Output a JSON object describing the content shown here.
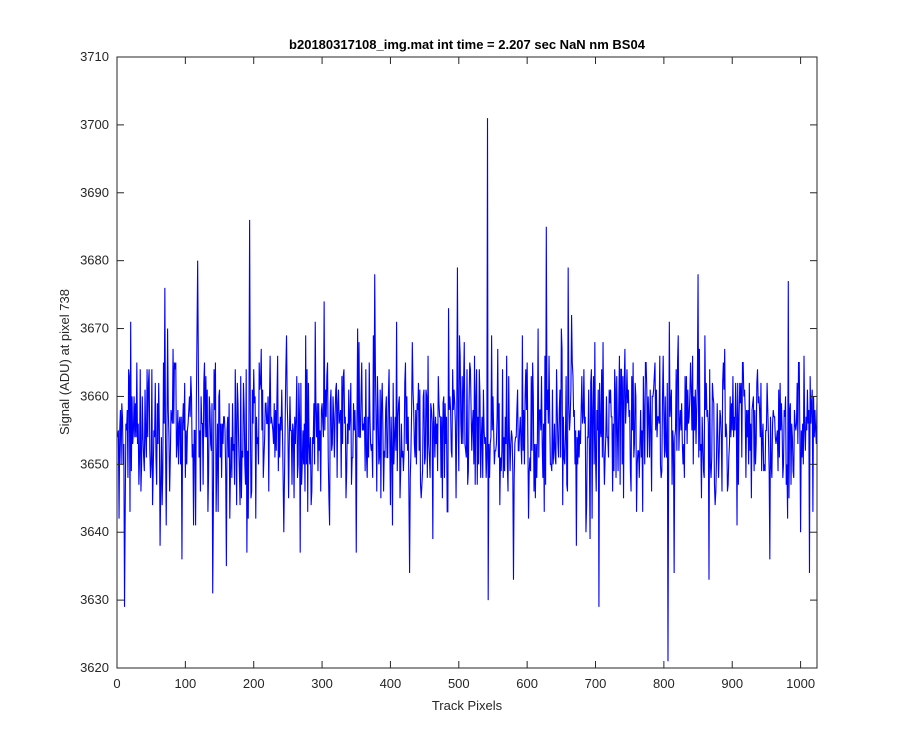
{
  "chart_data": {
    "type": "line",
    "title": "b20180317108_img.mat int time = 2.207 sec  NaN nm BS04",
    "xlabel": "Track Pixels",
    "ylabel": "Signal (ADU) at pixel 738",
    "xlim": [
      0,
      1024
    ],
    "ylim": [
      3620,
      3710
    ],
    "xticks": [
      0,
      100,
      200,
      300,
      400,
      500,
      600,
      700,
      800,
      900,
      1000
    ],
    "yticks": [
      3620,
      3630,
      3640,
      3650,
      3660,
      3670,
      3680,
      3690,
      3700,
      3710
    ],
    "grid": false,
    "box": true,
    "line_color": "#0000ff",
    "series": [
      {
        "x_start": 1,
        "x_step": 1,
        "baseline": 3655.5,
        "noise_std": 6.2,
        "point_count": 1024,
        "peaks": [
          {
            "x": 11,
            "y": 3629
          },
          {
            "x": 70,
            "y": 3676
          },
          {
            "x": 95,
            "y": 3636
          },
          {
            "x": 118,
            "y": 3680
          },
          {
            "x": 140,
            "y": 3631
          },
          {
            "x": 160,
            "y": 3635
          },
          {
            "x": 194,
            "y": 3686
          },
          {
            "x": 190,
            "y": 3637
          },
          {
            "x": 224,
            "y": 3666
          },
          {
            "x": 268,
            "y": 3637
          },
          {
            "x": 290,
            "y": 3671
          },
          {
            "x": 350,
            "y": 3637
          },
          {
            "x": 377,
            "y": 3678
          },
          {
            "x": 428,
            "y": 3634
          },
          {
            "x": 462,
            "y": 3639
          },
          {
            "x": 498,
            "y": 3679
          },
          {
            "x": 542,
            "y": 3701
          },
          {
            "x": 543,
            "y": 3630
          },
          {
            "x": 580,
            "y": 3633
          },
          {
            "x": 628,
            "y": 3685
          },
          {
            "x": 660,
            "y": 3679
          },
          {
            "x": 705,
            "y": 3629
          },
          {
            "x": 806,
            "y": 3621
          },
          {
            "x": 815,
            "y": 3634
          },
          {
            "x": 850,
            "y": 3678
          },
          {
            "x": 866,
            "y": 3633
          },
          {
            "x": 955,
            "y": 3636
          },
          {
            "x": 982,
            "y": 3677
          },
          {
            "x": 1000,
            "y": 3640
          }
        ]
      }
    ]
  }
}
